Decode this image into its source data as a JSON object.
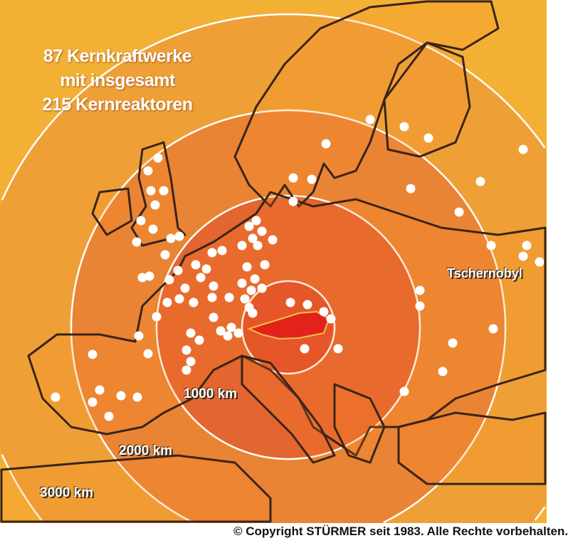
{
  "map": {
    "title_lines": [
      "87 Kernkraftwerke",
      "mit insgesamt",
      "215 Kernreaktoren"
    ],
    "ring_labels": [
      "1000 km",
      "2000 km",
      "3000 km"
    ],
    "place_label": "Tschernobyl",
    "highlighted_country": "Austria",
    "copyright": "© Copyright STÜRMER seit 1983. Alle Rechte vorbehalten.",
    "colors": {
      "outer": "#f2b035",
      "ring_3000": "#eea036",
      "ring_2000": "#e98434",
      "ring_1000": "#e3652f",
      "center": "#e04c2a",
      "austria": "#e1231c",
      "borders": "#3a2418",
      "plant_marker": "#ffffff"
    }
  }
}
